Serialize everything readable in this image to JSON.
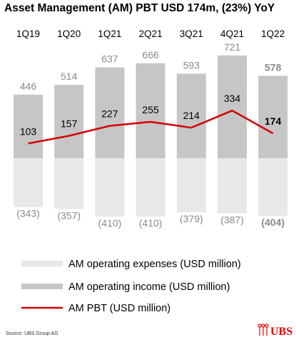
{
  "title": "Asset Management (AM) PBT USD 174m, (23%) YoY",
  "source": "Source: UBS Group AG",
  "logo": {
    "text": "UBS",
    "color": "#e60000"
  },
  "colors": {
    "income": "#c6c6c6",
    "expenses": "#e8e8e8",
    "pbt": "#d40000"
  },
  "chart_data": {
    "type": "bar",
    "categories": [
      "1Q19",
      "1Q20",
      "1Q21",
      "2Q21",
      "3Q21",
      "4Q21",
      "1Q22"
    ],
    "series": [
      {
        "name": "AM operating expenses (USD million)",
        "type": "bar",
        "values": [
          -343,
          -357,
          -410,
          -410,
          -379,
          -387,
          -404
        ],
        "labels": [
          "(343)",
          "(357)",
          "(410)",
          "(410)",
          "(379)",
          "(387)",
          "(404)"
        ]
      },
      {
        "name": "AM operating income (USD million)",
        "type": "bar",
        "values": [
          446,
          514,
          637,
          666,
          593,
          721,
          578
        ],
        "labels": [
          "446",
          "514",
          "637",
          "666",
          "593",
          "721",
          "578"
        ]
      },
      {
        "name": "AM PBT (USD million)",
        "type": "line",
        "values": [
          103,
          157,
          227,
          255,
          214,
          334,
          174
        ],
        "labels": [
          "103",
          "157",
          "227",
          "255",
          "214",
          "334",
          "174"
        ]
      }
    ],
    "highlight_last": true,
    "legend_position": "bottom",
    "grid": false
  }
}
